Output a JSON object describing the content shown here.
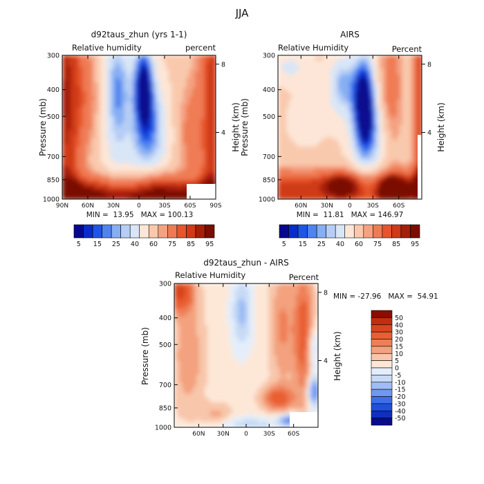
{
  "figure": {
    "title": "JJA"
  },
  "colors": {
    "rh": [
      "#08088f",
      "#0a2bc8",
      "#1f55e6",
      "#4f83f0",
      "#86aef3",
      "#b6cdf5",
      "#d9e6f7",
      "#fde6d7",
      "#f9c9ad",
      "#f4a282",
      "#ef7b55",
      "#e6552c",
      "#cf3a17",
      "#a51e08",
      "#7a0c00"
    ],
    "diff": [
      "#0a0a8c",
      "#0f2fbf",
      "#1f4fdc",
      "#3f6fe8",
      "#6f98ef",
      "#9fbdf4",
      "#c8dbf6",
      "#e4eefa",
      "#fde8d8",
      "#f8c6aa",
      "#f3a17e",
      "#ef7f56",
      "#e85f33",
      "#d9451f",
      "#c12e0d",
      "#8c0d00"
    ]
  },
  "chart_data": [
    {
      "type": "heatmap",
      "title": "d92taus_zhun (yrs 1-1)",
      "left_label": "Relative humidity",
      "right_label": "percent",
      "ylabel": "Pressure (mb)",
      "y2label": "Height (km)",
      "yticks": [
        "300",
        "400",
        "500",
        "700",
        "850",
        "1000"
      ],
      "y2ticks": [
        "8",
        "4"
      ],
      "xticks": [
        "90N",
        "60N",
        "30N",
        "0",
        "30S",
        "60S",
        "90S"
      ],
      "stats": {
        "min_label": "MIN =",
        "min": "13.95",
        "max_label": "MAX =",
        "max": "100.13"
      },
      "colorbar_labels": [
        "5",
        "15",
        "25",
        "40",
        "60",
        "75",
        "85",
        "95"
      ]
    },
    {
      "type": "heatmap",
      "title": "AIRS",
      "left_label": "Relative Humidity",
      "right_label": "Percent",
      "ylabel": "Pressure (mb)",
      "y2label": "Height (km)",
      "yticks": [
        "300",
        "400",
        "500",
        "700",
        "850",
        "1000"
      ],
      "y2ticks": [
        "8",
        "4"
      ],
      "xticks": [
        "60N",
        "30N",
        "0",
        "30S",
        "60S"
      ],
      "stats": {
        "min_label": "MIN =",
        "min": "11.81",
        "max_label": "MAX =",
        "max": "146.97"
      },
      "colorbar_labels": [
        "5",
        "15",
        "25",
        "40",
        "60",
        "75",
        "85",
        "95"
      ]
    },
    {
      "type": "heatmap",
      "title": "d92taus_zhun - AIRS",
      "left_label": "Relative Humidity",
      "right_label": "Percent",
      "ylabel": "Pressure (mb)",
      "y2label": "Height (km)",
      "yticks": [
        "300",
        "400",
        "500",
        "700",
        "850",
        "1000"
      ],
      "y2ticks": [
        "8",
        "4"
      ],
      "xticks": [
        "60N",
        "30N",
        "0",
        "30S",
        "60S"
      ],
      "stats": {
        "min_label": "MIN =",
        "min": "-27.96",
        "max_label": "MAX =",
        "max": "54.91"
      },
      "colorbar_labels": [
        "50",
        "40",
        "30",
        "20",
        "15",
        "10",
        "5",
        "0",
        "-5",
        "-10",
        "-15",
        "-20",
        "-30",
        "-40",
        "-50"
      ]
    }
  ]
}
